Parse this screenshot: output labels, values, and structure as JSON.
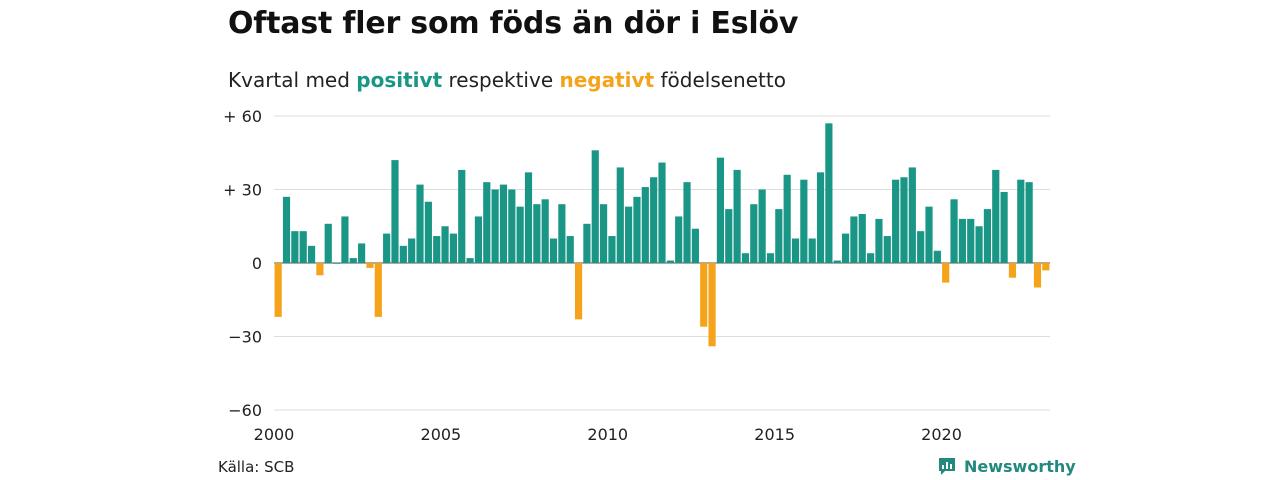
{
  "title": "Oftast fler som föds än dör i Eslöv",
  "subtitle": {
    "prefix": "Kvartal med",
    "positive_word": "positivt",
    "middle": "respektive",
    "negative_word": "negativt",
    "suffix": "födelsenetto"
  },
  "source": "Källa: SCB",
  "brand": {
    "name": "Newsworthy",
    "icon": "newsworthy-logo-icon"
  },
  "colors": {
    "positive": "#1a9687",
    "negative": "#f5a31a",
    "grid": "#dddddd",
    "axis": "#555555",
    "brand": "#22897f"
  },
  "chart_data": {
    "type": "bar",
    "x_start": 2000,
    "periods_per_year": 4,
    "xticks": [
      2000,
      2005,
      2010,
      2015,
      2020
    ],
    "yticks": [
      60,
      30,
      0,
      -30,
      -60
    ],
    "ytick_labels": [
      "+ 60",
      "+ 30",
      "0",
      "−30",
      "−60"
    ],
    "ylim": [
      -60,
      60
    ],
    "grid": true,
    "values": [
      -22,
      27,
      13,
      13,
      7,
      -5,
      16,
      0,
      19,
      2,
      8,
      -2,
      -22,
      12,
      42,
      7,
      10,
      32,
      25,
      11,
      15,
      12,
      38,
      2,
      19,
      33,
      30,
      32,
      30,
      23,
      37,
      24,
      26,
      10,
      24,
      11,
      -23,
      16,
      46,
      24,
      11,
      39,
      23,
      27,
      31,
      35,
      41,
      1,
      19,
      33,
      14,
      -26,
      -34,
      43,
      22,
      38,
      4,
      24,
      30,
      4,
      22,
      36,
      10,
      34,
      10,
      37,
      57,
      1,
      12,
      19,
      20,
      4,
      18,
      11,
      34,
      35,
      39,
      13,
      23,
      5,
      -8,
      26,
      18,
      18,
      15,
      22,
      38,
      29,
      -6,
      34,
      33,
      -10,
      -3
    ]
  }
}
